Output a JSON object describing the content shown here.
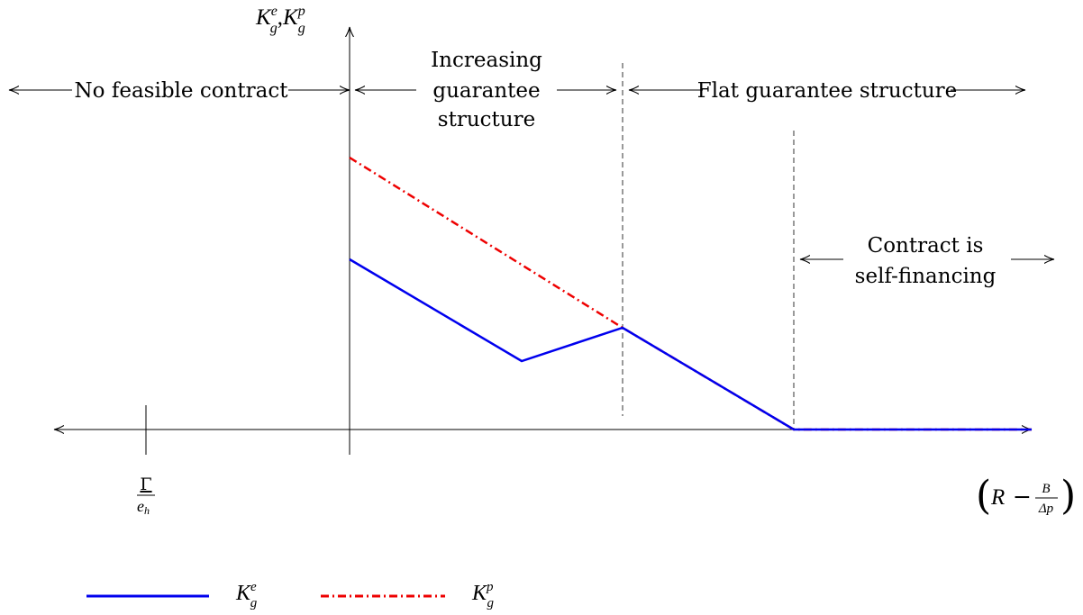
{
  "diagram": {
    "y_axis_label": {
      "main": "K",
      "sub": "g",
      "sup_e": "e",
      "sep": ",",
      "sup_p": "p"
    },
    "x_axis_label": {
      "open": "(",
      "R": "R",
      "minus": "−",
      "num": "B",
      "den": "Δp",
      "close": ")"
    },
    "tick_label": {
      "num": "Γ",
      "den_main": "e",
      "den_sub": "h"
    },
    "regions": {
      "no_feasible": "No feasible contract",
      "increasing_1": "Increasing",
      "increasing_2": "guarantee",
      "increasing_3": "structure",
      "flat": "Flat guarantee structure",
      "self_1": "Contract is",
      "self_2": "self-financing"
    },
    "legend": {
      "e": {
        "main": "K",
        "sub": "g",
        "sup": "e",
        "color": "#0000ee",
        "style": "solid"
      },
      "p": {
        "main": "K",
        "sub": "g",
        "sup": "p",
        "color": "#ee0000",
        "style": "dash-dot"
      }
    }
  }
}
